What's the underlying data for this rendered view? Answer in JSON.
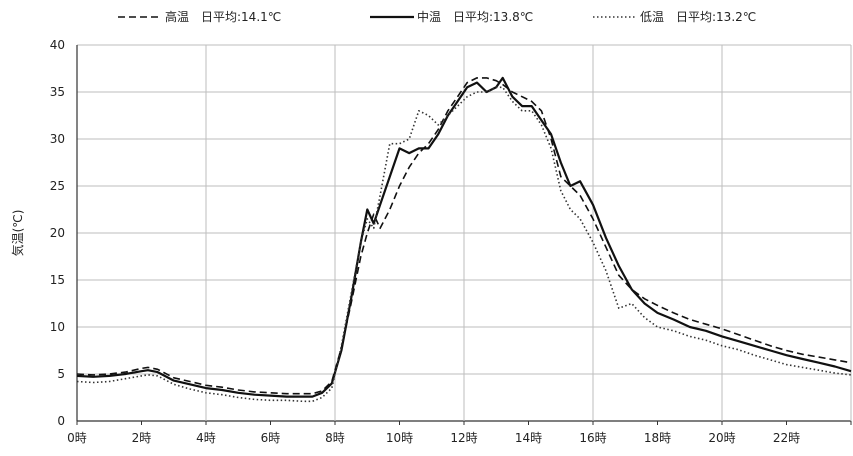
{
  "chart_data": {
    "type": "line",
    "title": "",
    "xlabel": "",
    "ylabel": "気温(℃)",
    "ylim": [
      0,
      40
    ],
    "y_ticks": [
      0,
      5,
      10,
      15,
      20,
      25,
      30,
      35,
      40
    ],
    "xlim": [
      0,
      24
    ],
    "x_ticks": [
      0,
      2,
      4,
      6,
      8,
      10,
      12,
      14,
      16,
      18,
      20,
      22
    ],
    "x_tick_labels": [
      "0時",
      "2時",
      "4時",
      "6時",
      "8時",
      "10時",
      "12時",
      "14時",
      "16時",
      "18時",
      "20時",
      "22時"
    ],
    "grid": true,
    "legend_position": "top",
    "series": [
      {
        "name": "高温",
        "legend_label": "高温　日平均:14.1℃",
        "style": "dashed",
        "color": "#111111",
        "x": [
          0,
          0.5,
          1,
          1.5,
          2,
          2.2,
          2.5,
          3,
          3.5,
          4,
          4.5,
          5,
          5.5,
          6,
          6.5,
          7,
          7.3,
          7.6,
          7.9,
          8.2,
          8.5,
          8.8,
          9.0,
          9.2,
          9.4,
          9.7,
          10.0,
          10.3,
          10.6,
          10.9,
          11.2,
          11.5,
          11.8,
          12.1,
          12.4,
          12.7,
          13.0,
          13.2,
          13.5,
          13.8,
          14.1,
          14.4,
          14.7,
          15.0,
          15.3,
          15.6,
          16.0,
          16.4,
          16.8,
          17.2,
          17.6,
          18.0,
          18.5,
          19.0,
          19.5,
          20.0,
          20.5,
          21.0,
          21.5,
          22.0,
          22.5,
          23.0,
          23.5,
          24.0
        ],
        "y": [
          5.0,
          4.9,
          5.0,
          5.2,
          5.6,
          5.7,
          5.5,
          4.6,
          4.2,
          3.8,
          3.6,
          3.3,
          3.1,
          3.0,
          2.9,
          2.9,
          2.9,
          3.2,
          4.2,
          7.8,
          12.5,
          17.5,
          20.0,
          22.0,
          20.5,
          22.5,
          25.0,
          27.0,
          28.5,
          29.5,
          31.0,
          33.0,
          34.5,
          36.0,
          36.5,
          36.5,
          36.2,
          35.8,
          35.0,
          34.5,
          34.0,
          33.0,
          30.0,
          26.0,
          25.0,
          24.0,
          21.5,
          18.5,
          15.5,
          14.0,
          13.0,
          12.3,
          11.5,
          10.8,
          10.3,
          9.8,
          9.2,
          8.6,
          8.0,
          7.5,
          7.1,
          6.8,
          6.5,
          6.2
        ]
      },
      {
        "name": "中温",
        "legend_label": "中温　日平均:13.8℃",
        "style": "solid",
        "color": "#111111",
        "x": [
          0,
          0.5,
          1,
          1.5,
          2,
          2.2,
          2.5,
          3,
          3.5,
          4,
          4.5,
          5,
          5.5,
          6,
          6.5,
          7,
          7.3,
          7.6,
          7.9,
          8.2,
          8.5,
          8.8,
          9.0,
          9.2,
          9.4,
          9.7,
          10.0,
          10.3,
          10.6,
          10.9,
          11.2,
          11.5,
          11.8,
          12.1,
          12.4,
          12.7,
          13.0,
          13.2,
          13.5,
          13.8,
          14.1,
          14.4,
          14.7,
          15.0,
          15.3,
          15.6,
          16.0,
          16.4,
          16.8,
          17.2,
          17.6,
          18.0,
          18.5,
          19.0,
          19.5,
          20.0,
          20.5,
          21.0,
          21.5,
          22.0,
          22.5,
          23.0,
          23.5,
          24.0
        ],
        "y": [
          4.8,
          4.7,
          4.8,
          5.0,
          5.3,
          5.4,
          5.2,
          4.3,
          3.9,
          3.5,
          3.3,
          3.0,
          2.8,
          2.7,
          2.6,
          2.6,
          2.6,
          3.0,
          4.0,
          7.5,
          13.0,
          19.0,
          22.5,
          21.0,
          23.0,
          26.0,
          29.0,
          28.5,
          29.0,
          29.0,
          30.5,
          32.5,
          34.0,
          35.5,
          36.0,
          35.0,
          35.5,
          36.5,
          34.5,
          33.5,
          33.5,
          32.0,
          30.5,
          27.5,
          25.0,
          25.5,
          23.0,
          19.5,
          16.5,
          14.0,
          12.5,
          11.5,
          10.8,
          10.0,
          9.6,
          9.0,
          8.5,
          8.0,
          7.5,
          7.0,
          6.6,
          6.2,
          5.8,
          5.3
        ]
      },
      {
        "name": "低温",
        "legend_label": "低温　日平均:13.2℃",
        "style": "dotted",
        "color": "#333333",
        "x": [
          0,
          0.5,
          1,
          1.5,
          2,
          2.2,
          2.5,
          3,
          3.5,
          4,
          4.5,
          5,
          5.5,
          6,
          6.5,
          7,
          7.3,
          7.6,
          7.9,
          8.2,
          8.5,
          8.8,
          9.0,
          9.2,
          9.4,
          9.7,
          10.0,
          10.3,
          10.6,
          10.9,
          11.2,
          11.5,
          11.8,
          12.1,
          12.4,
          12.7,
          13.0,
          13.2,
          13.5,
          13.8,
          14.1,
          14.4,
          14.7,
          15.0,
          15.3,
          15.6,
          16.0,
          16.4,
          16.8,
          17.2,
          17.6,
          18.0,
          18.5,
          19.0,
          19.5,
          20.0,
          20.5,
          21.0,
          21.5,
          22.0,
          22.5,
          23.0,
          23.5,
          24.0
        ],
        "y": [
          4.2,
          4.1,
          4.2,
          4.5,
          4.8,
          4.9,
          4.8,
          3.9,
          3.4,
          3.0,
          2.8,
          2.5,
          2.3,
          2.2,
          2.2,
          2.1,
          2.1,
          2.5,
          3.5,
          8.0,
          13.5,
          19.0,
          21.5,
          20.5,
          24.0,
          29.5,
          29.5,
          30.0,
          33.0,
          32.5,
          31.5,
          32.5,
          33.5,
          34.5,
          35.0,
          35.0,
          35.5,
          35.5,
          34.0,
          33.0,
          33.0,
          31.5,
          29.0,
          24.5,
          22.5,
          21.5,
          19.0,
          16.0,
          12.0,
          12.5,
          11.0,
          10.0,
          9.6,
          9.0,
          8.6,
          8.0,
          7.6,
          7.0,
          6.5,
          6.0,
          5.7,
          5.4,
          5.1,
          4.9
        ]
      }
    ]
  }
}
